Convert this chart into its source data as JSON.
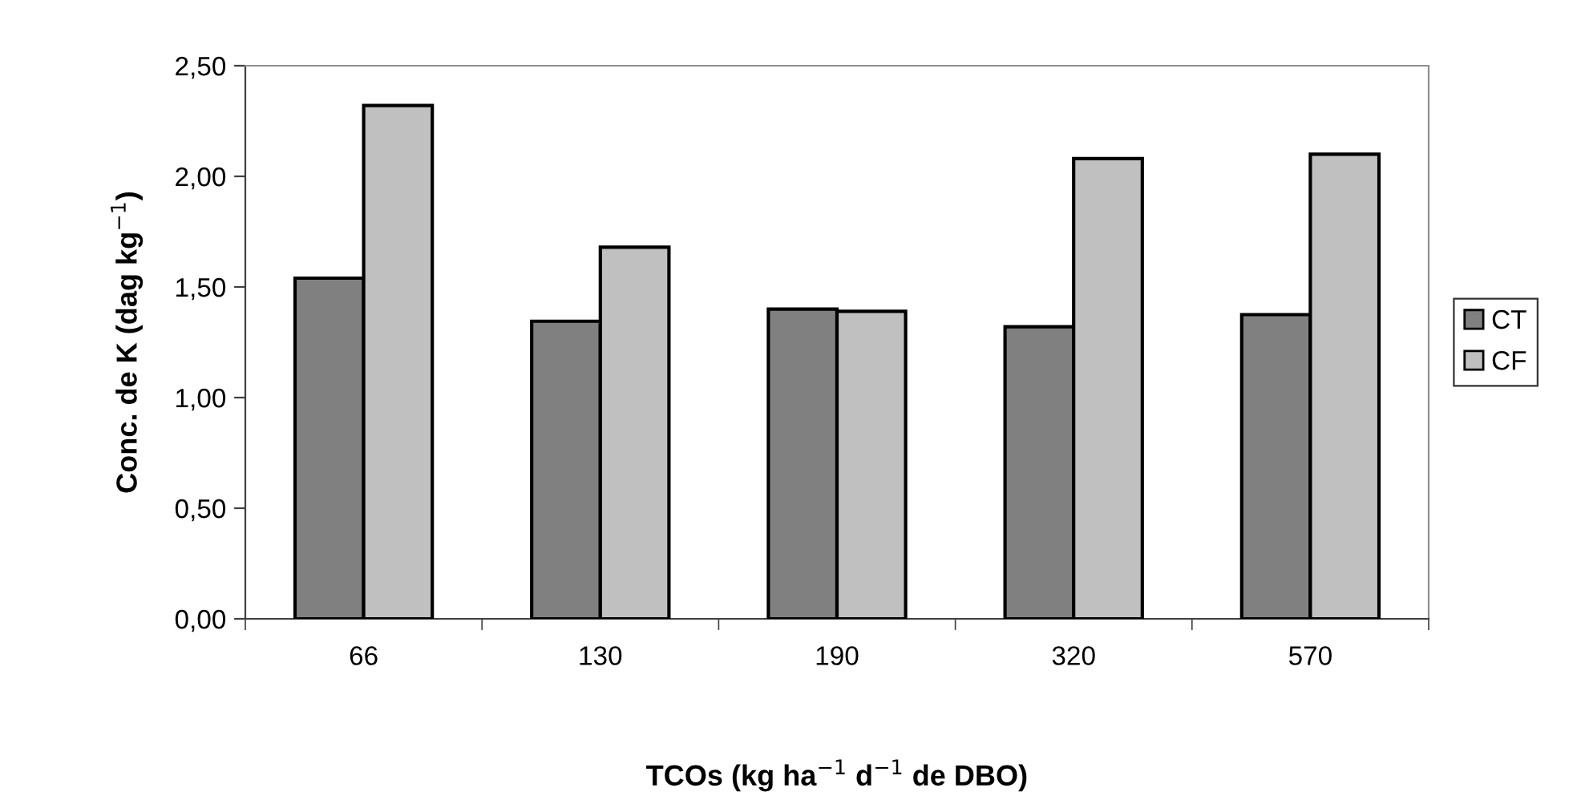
{
  "chart_data": {
    "type": "bar",
    "xlabel": "TCOs (kg ha$^{−1}$ d$^{−1}$ de DBO)",
    "ylabel": "Conc. de K (dag kg$^{−1}$)",
    "categories": [
      "66",
      "130",
      "190",
      "320",
      "570"
    ],
    "series": [
      {
        "name": "CT",
        "color": "#808080",
        "values": [
          1.54,
          1.345,
          1.4,
          1.32,
          1.375
        ]
      },
      {
        "name": "CF",
        "color": "#c0c0c0",
        "values": [
          2.32,
          1.68,
          1.39,
          2.08,
          2.1
        ]
      }
    ],
    "ylim": [
      0,
      2.5
    ],
    "yticks": [
      {
        "value": 0,
        "label": "0,00"
      },
      {
        "value": 0.5,
        "label": "0,50"
      },
      {
        "value": 1.0,
        "label": "1,00"
      },
      {
        "value": 1.5,
        "label": "1,50"
      },
      {
        "value": 2.0,
        "label": "2,00"
      },
      {
        "value": 2.5,
        "label": "2,50"
      }
    ],
    "grid": false,
    "legend": "right"
  }
}
